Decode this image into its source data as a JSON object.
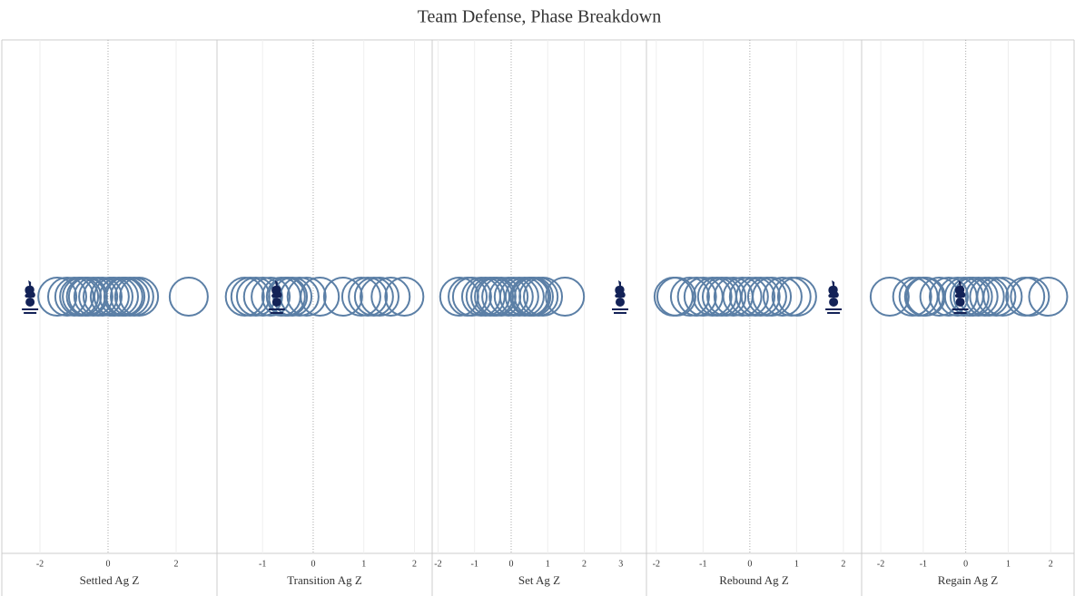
{
  "title": "Team Defense, Phase Breakdown",
  "chart_data": [
    {
      "type": "strip",
      "xlabel": "Settled Ag Z",
      "xlim": [
        -3.12,
        3.2
      ],
      "xticks": [
        -2,
        0,
        2
      ],
      "color": "#5b7fa6",
      "grid": true,
      "highlight": -2.29,
      "values": [
        -1.49,
        -1.2,
        -0.99,
        -0.85,
        -0.77,
        -0.65,
        -0.59,
        -0.43,
        -0.29,
        -0.16,
        0.05,
        0.16,
        0.32,
        0.45,
        0.51,
        0.64,
        0.77,
        0.91,
        2.37
      ]
    },
    {
      "type": "strip",
      "xlabel": "Transition Ag Z",
      "xlim": [
        -1.9,
        2.35
      ],
      "xticks": [
        -1,
        0,
        1,
        2
      ],
      "color": "#5b7fa6",
      "grid": true,
      "highlight": -0.72,
      "values": [
        -1.35,
        -1.24,
        -1.13,
        -0.99,
        -0.84,
        -0.63,
        -0.54,
        -0.5,
        -0.41,
        -0.27,
        -0.13,
        0.13,
        0.59,
        0.95,
        1.08,
        1.2,
        1.31,
        1.53,
        1.8
      ]
    },
    {
      "type": "strip",
      "xlabel": "Set Ag Z",
      "xlim": [
        -2.16,
        3.7
      ],
      "xticks": [
        -2,
        -1,
        0,
        1,
        2,
        3
      ],
      "color": "#5b7fa6",
      "grid": true,
      "highlight": 2.98,
      "values": [
        -1.42,
        -1.19,
        -1.07,
        -0.82,
        -0.7,
        -0.57,
        -0.47,
        -0.4,
        -0.27,
        -0.07,
        0.07,
        0.22,
        0.37,
        0.5,
        0.55,
        0.62,
        0.75,
        0.87,
        1.47
      ]
    },
    {
      "type": "strip",
      "xlabel": "Rebound Ag Z",
      "xlim": [
        -2.21,
        2.39
      ],
      "xticks": [
        -2,
        -1,
        0,
        1,
        2
      ],
      "color": "#5b7fa6",
      "grid": true,
      "highlight": 1.79,
      "values": [
        -1.63,
        -1.57,
        -1.28,
        -1.13,
        -0.99,
        -0.8,
        -0.7,
        -0.6,
        -0.5,
        -0.35,
        -0.16,
        -0.02,
        0.12,
        0.23,
        0.37,
        0.47,
        0.7,
        0.89,
        1.01
      ]
    },
    {
      "type": "strip",
      "xlabel": "Regain Ag Z",
      "xlim": [
        -2.45,
        2.55
      ],
      "xticks": [
        -2,
        -1,
        0,
        1,
        2
      ],
      "color": "#5b7fa6",
      "grid": true,
      "highlight": -0.13,
      "values": [
        -1.79,
        -1.26,
        -1.11,
        -0.98,
        -0.94,
        -0.62,
        -0.4,
        -0.19,
        -0.04,
        0.09,
        0.17,
        0.3,
        0.45,
        0.55,
        0.72,
        0.87,
        1.4,
        1.51,
        1.94
      ]
    }
  ]
}
